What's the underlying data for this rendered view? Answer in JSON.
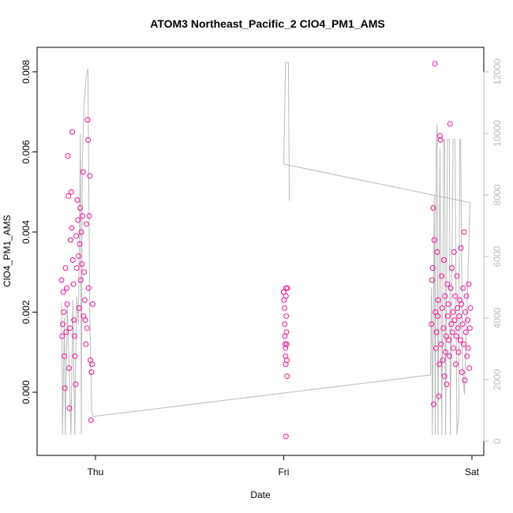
{
  "chart_data": {
    "type": "scatter",
    "title": "ATOM3 Northeast_Pacific_2 ClO4_PM1_AMS",
    "xlabel": "Date",
    "ylabel": "ClO4_PM1_AMS",
    "xlim": [
      -0.31,
      2.063
    ],
    "xticks": [
      {
        "value": 0,
        "label": "Thu"
      },
      {
        "value": 1,
        "label": "Fri"
      },
      {
        "value": 2,
        "label": "Sat"
      }
    ],
    "ylim": [
      -0.001576,
      0.00861
    ],
    "yticks": [
      {
        "value": 0,
        "label": "0.000"
      },
      0.002,
      0.004,
      0.006,
      0.008
    ],
    "y2lim": [
      -462,
      12795
    ],
    "y2ticks": [
      0,
      2000,
      4000,
      6000,
      8000,
      10000,
      12000
    ],
    "series": [
      {
        "type": "scatter",
        "color": "#ee1199",
        "x": [
          -0.18,
          -0.177,
          -0.174,
          -0.171,
          -0.168,
          -0.165,
          -0.162,
          -0.159,
          -0.156,
          -0.153,
          -0.15,
          -0.147,
          -0.144,
          -0.141,
          -0.138,
          -0.135,
          -0.132,
          -0.129,
          -0.126,
          -0.123,
          -0.12,
          -0.117,
          -0.114,
          -0.111,
          -0.108,
          -0.105,
          -0.102,
          -0.099,
          -0.096,
          -0.093,
          -0.09,
          -0.087,
          -0.084,
          -0.081,
          -0.078,
          -0.075,
          -0.072,
          -0.069,
          -0.066,
          -0.063,
          -0.06,
          -0.057,
          -0.054,
          -0.051,
          -0.048,
          -0.045,
          -0.042,
          -0.039,
          -0.036,
          -0.033,
          -0.03,
          -0.027,
          -0.024,
          -0.021,
          -0.018,
          -0.015,
          1.0,
          1.002,
          1.004,
          1.005,
          1.006,
          1.008,
          1.009,
          1.01,
          1.011,
          1.012,
          1.013,
          1.014,
          1.015,
          1.016,
          1.017,
          1.018,
          1.012,
          1.02,
          1.785,
          1.788,
          1.791,
          1.794,
          1.797,
          1.8,
          1.803,
          1.806,
          1.809,
          1.812,
          1.815,
          1.818,
          1.821,
          1.824,
          1.827,
          1.83,
          1.833,
          1.836,
          1.839,
          1.842,
          1.845,
          1.848,
          1.851,
          1.854,
          1.857,
          1.86,
          1.863,
          1.866,
          1.869,
          1.872,
          1.875,
          1.878,
          1.881,
          1.884,
          1.887,
          1.89,
          1.893,
          1.896,
          1.899,
          1.902,
          1.905,
          1.908,
          1.911,
          1.914,
          1.917,
          1.92,
          1.923,
          1.926,
          1.929,
          1.932,
          1.935,
          1.938,
          1.941,
          1.944,
          1.947,
          1.95,
          1.953,
          1.956,
          1.959,
          1.962,
          1.965,
          1.968,
          1.971,
          1.974,
          1.977,
          1.98,
          1.983,
          1.986,
          1.989,
          1.992
        ],
        "values": [
          0.0028,
          0.0014,
          0.0017,
          0.0025,
          0.002,
          0.0009,
          0.0001,
          0.0031,
          0.0015,
          0.0026,
          0.0022,
          0.0059,
          0.0049,
          0.0006,
          -0.0004,
          0.0016,
          0.0038,
          0.005,
          0.0041,
          0.0065,
          0.0033,
          0.0027,
          0.0018,
          0.0014,
          0.0009,
          0.0002,
          0.0039,
          0.0031,
          0.0048,
          0.0043,
          0.0034,
          0.0021,
          0.0037,
          0.0046,
          0.0028,
          0.004,
          0.0032,
          0.0044,
          0.0055,
          0.0019,
          0.003,
          0.0023,
          0.0018,
          0.0012,
          0.0042,
          0.0016,
          0.0068,
          0.0063,
          0.0026,
          0.0044,
          0.0054,
          0.0008,
          -0.0007,
          0.0005,
          0.0007,
          0.0022,
          0.0025,
          0.0023,
          0.0021,
          0.0017,
          0.0014,
          0.0012,
          0.0011,
          0.0009,
          0.0007,
          0.0024,
          0.0026,
          0.0019,
          0.0015,
          0.0012,
          0.0008,
          0.0004,
          -0.0011,
          0.0026,
          0.0017,
          0.0028,
          0.0031,
          0.0046,
          -0.0003,
          0.0038,
          0.0082,
          0.002,
          0.0011,
          0.0015,
          0.0035,
          0.0019,
          0.0023,
          -0.0001,
          0.0007,
          0.0064,
          0.0063,
          0.0012,
          0.0029,
          0.0021,
          0.0008,
          0.0016,
          0.0033,
          0.0004,
          0.0024,
          0.001,
          0.0014,
          0.0002,
          0.0027,
          0.0019,
          0.0022,
          0.0013,
          0.0009,
          0.0067,
          0.0026,
          0.0017,
          0.0031,
          0.0015,
          0.002,
          0.0011,
          0.0035,
          0.0018,
          0.0024,
          0.0007,
          0.0014,
          0.0029,
          0.0021,
          0.0016,
          0.001,
          0.0019,
          0.0023,
          0.0013,
          0.0036,
          0.0022,
          0.0005,
          0.0017,
          0.0026,
          0.0012,
          0.004,
          0.0003,
          0.002,
          0.0015,
          0.0024,
          0.0009,
          0.0018,
          0.0011,
          0.0027,
          0.0006,
          0.0016,
          0.0021
        ]
      },
      {
        "type": "line",
        "axis": "y2",
        "color": "#bbbbbb",
        "x": [
          -0.18,
          -0.175,
          -0.165,
          -0.16,
          -0.15,
          -0.14,
          -0.13,
          -0.12,
          -0.11,
          -0.1,
          -0.09,
          -0.08,
          -0.075,
          -0.07,
          -0.06,
          -0.05,
          -0.045,
          -0.04,
          -0.035,
          -0.03,
          -0.02,
          -0.013,
          1.78,
          1.785,
          1.79,
          1.8,
          1.805,
          1.81,
          1.815,
          1.82,
          1.83,
          1.84,
          1.85,
          1.855,
          1.86,
          1.87,
          1.88,
          1.885,
          1.9,
          1.91,
          1.92,
          1.93,
          1.935,
          1.94,
          1.95,
          1.96,
          1.99,
          1.0,
          1.01,
          1.025,
          1.03
        ],
        "values": [
          4500,
          200,
          4000,
          200,
          4400,
          2500,
          200,
          4600,
          200,
          4700,
          3800,
          10000,
          200,
          9000,
          11000,
          11800,
          12000,
          12100,
          8000,
          4000,
          1000,
          800,
          2150,
          5000,
          200,
          8000,
          200,
          9500,
          10300,
          200,
          9500,
          200,
          9800,
          9800,
          200,
          9800,
          9800,
          200,
          9800,
          9800,
          200,
          800,
          9800,
          9800,
          2500,
          1500,
          7750,
          9000,
          12300,
          12300,
          7800
        ]
      }
    ]
  }
}
